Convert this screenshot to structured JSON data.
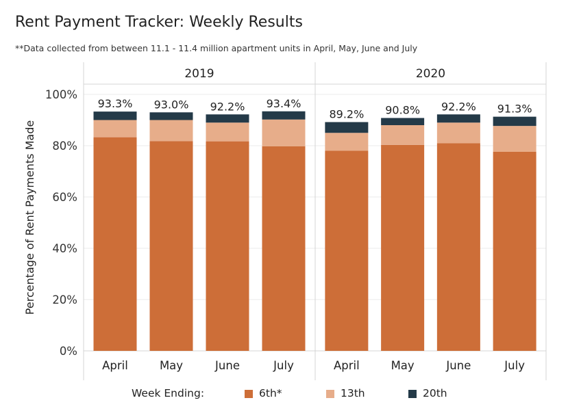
{
  "title": "Rent Payment Tracker: Weekly Results",
  "subtitle": "**Data collected from between 11.1 - 11.4 million apartment units in April, May, June and July",
  "legend": {
    "title": "Week Ending:",
    "items": [
      {
        "label": "6th*",
        "color": "#cd6e38"
      },
      {
        "label": "13th",
        "color": "#e7ad8a"
      },
      {
        "label": "20th",
        "color": "#243a48"
      }
    ]
  },
  "chart_data": {
    "type": "bar",
    "stacked": true,
    "ylabel": "Percentage of Rent Payments Made",
    "ylim": [
      0,
      100
    ],
    "yticks": [
      "0%",
      "20%",
      "40%",
      "60%",
      "80%",
      "100%"
    ],
    "panels": [
      {
        "name": "2019",
        "categories": [
          "April",
          "May",
          "June",
          "July"
        ],
        "totals_labels": [
          "93.3%",
          "93.0%",
          "92.2%",
          "93.4%"
        ],
        "series": [
          {
            "name": "6th*",
            "values": [
              83.3,
              81.8,
              81.7,
              79.8
            ]
          },
          {
            "name": "13th",
            "values": [
              6.7,
              8.2,
              7.3,
              10.4
            ]
          },
          {
            "name": "20th",
            "values": [
              3.3,
              3.0,
              3.2,
              3.2
            ]
          }
        ]
      },
      {
        "name": "2020",
        "categories": [
          "April",
          "May",
          "June",
          "July"
        ],
        "totals_labels": [
          "89.2%",
          "90.8%",
          "92.2%",
          "91.3%"
        ],
        "series": [
          {
            "name": "6th*",
            "values": [
              78.0,
              80.3,
              81.0,
              77.6
            ]
          },
          {
            "name": "13th",
            "values": [
              7.0,
              7.7,
              8.0,
              10.1
            ]
          },
          {
            "name": "20th",
            "values": [
              4.2,
              2.8,
              3.2,
              3.6
            ]
          }
        ]
      }
    ]
  }
}
